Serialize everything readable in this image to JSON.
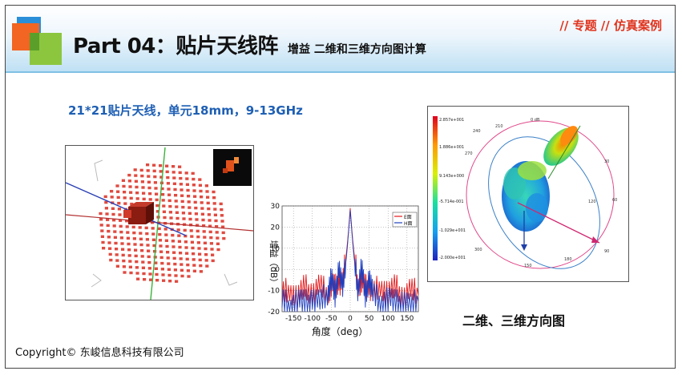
{
  "slide": {
    "title": "Part 04：贴片天线阵",
    "subtitle": "增益 二维和三维方向图计算",
    "tag": "// 专题 // 仿真案例",
    "caption_top": "21*21贴片天线，单元18mm，9-13GHz",
    "caption_right": "二维、三维方向图",
    "footer": "Copyright© 东峻信息科技有限公司"
  },
  "chart_data": {
    "type": "line",
    "xlabel": "角度（deg）",
    "ylabel": "增益（dB）",
    "x_ticks": [
      "-150",
      "-100",
      "-50",
      "0",
      "50",
      "100",
      "150"
    ],
    "y_ticks": [
      "30",
      "20",
      "10",
      "0",
      "-10",
      "-20"
    ],
    "xlim": [
      -180,
      180
    ],
    "ylim": [
      -20,
      30
    ],
    "legend_labels": [
      "E面",
      "H面"
    ],
    "legend_position": "top-right",
    "grid": true,
    "series": [
      {
        "name": "E面",
        "color": "#e41a1c",
        "x": [
          -180,
          -160,
          -140,
          -120,
          -100,
          -80,
          -60,
          -50,
          -40,
          -30,
          -20,
          -10,
          -5,
          0,
          5,
          10,
          20,
          30,
          40,
          50,
          60,
          80,
          100,
          120,
          140,
          160,
          180
        ],
        "y": [
          -12,
          -10,
          -13,
          -9,
          -11,
          -8,
          -12,
          -6,
          -10,
          -4,
          -8,
          8,
          17,
          29,
          17,
          8,
          -8,
          -4,
          -10,
          -6,
          -12,
          -8,
          -11,
          -9,
          -13,
          -10,
          -12
        ]
      },
      {
        "name": "H面",
        "color": "#1f3fbf",
        "x": [
          -180,
          -160,
          -140,
          -120,
          -100,
          -80,
          -60,
          -50,
          -40,
          -30,
          -20,
          -10,
          -5,
          0,
          5,
          10,
          20,
          30,
          40,
          50,
          60,
          80,
          100,
          120,
          140,
          160,
          180
        ],
        "y": [
          -15,
          -18,
          -14,
          -17,
          -13,
          -16,
          -12,
          -3,
          -14,
          2,
          -10,
          6,
          16,
          28,
          16,
          6,
          -10,
          2,
          -14,
          -3,
          -12,
          -16,
          -13,
          -17,
          -14,
          -18,
          -15
        ]
      }
    ]
  },
  "colorbar": {
    "labels": [
      "2.857e+001",
      "1.886e+001",
      "9.143e+000",
      "-5.714e-001",
      "-1.029e+001",
      "-2.000e+001"
    ]
  },
  "polar_labels": {
    "top": "0 dB",
    "ring": [
      "240",
      "210",
      "270",
      "30",
      "60",
      "90",
      "120",
      "150",
      "180",
      "300"
    ]
  },
  "colors": {
    "accent_red": "#e0341e",
    "accent_blue": "#1e5fb4"
  }
}
